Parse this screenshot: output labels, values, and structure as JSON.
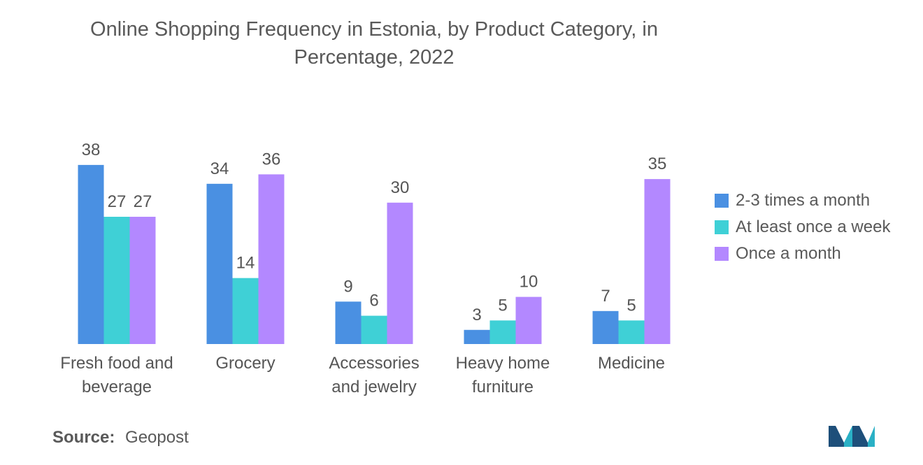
{
  "header": {
    "title_line1": "Online Shopping Frequency in Estonia, by Product Category, in",
    "title_line2": "Percentage, 2022"
  },
  "source": {
    "label": "Source:",
    "value": "Geopost"
  },
  "logo": {
    "icon": "mordor-intelligence-logo-icon"
  },
  "chart_data": {
    "type": "bar",
    "title": "Online Shopping Frequency in Estonia, by Product Category, in Percentage, 2022",
    "xlabel": "",
    "ylabel": "",
    "ylim": [
      0,
      40
    ],
    "grid": false,
    "legend_position": "right",
    "categories": [
      [
        "Fresh food and",
        "beverage"
      ],
      [
        "Grocery"
      ],
      [
        "Accessories",
        "and jewelry"
      ],
      [
        "Heavy home",
        "furniture"
      ],
      [
        "Medicine"
      ]
    ],
    "series": [
      {
        "name": "2-3 times a month",
        "color": "#4a90e2",
        "values": [
          38,
          34,
          9,
          3,
          7
        ]
      },
      {
        "name": "At least once a week",
        "color": "#3fd0d6",
        "values": [
          27,
          14,
          6,
          5,
          5
        ]
      },
      {
        "name": "Once a month",
        "color": "#b388ff",
        "values": [
          27,
          36,
          30,
          10,
          35
        ]
      }
    ]
  }
}
